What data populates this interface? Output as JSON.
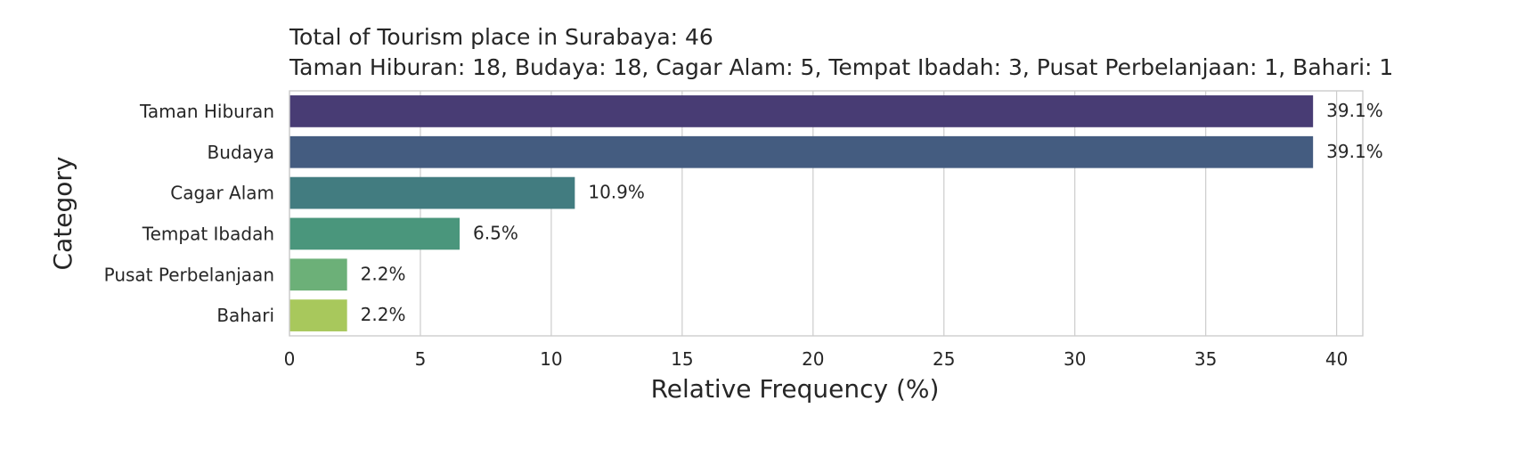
{
  "chart_data": {
    "type": "bar",
    "orientation": "horizontal",
    "title": "Total of Tourism place in Surabaya: 46",
    "subtitle": "Taman Hiburan: 18, Budaya: 18, Cagar Alam: 5, Tempat Ibadah: 3, Pusat Perbelanjaan: 1, Bahari: 1",
    "xlabel": "Relative Frequency (%)",
    "ylabel": "Category",
    "xlim": [
      0,
      41
    ],
    "xticks": [
      0,
      5,
      10,
      15,
      20,
      25,
      30,
      35,
      40
    ],
    "grid": true,
    "categories": [
      "Taman Hiburan",
      "Budaya",
      "Cagar Alam",
      "Tempat Ibadah",
      "Pusat Perbelanjaan",
      "Bahari"
    ],
    "values": [
      39.1,
      39.1,
      10.9,
      6.5,
      2.2,
      2.2
    ],
    "data_labels": [
      "39.1%",
      "39.1%",
      "10.9%",
      "6.5%",
      "2.2%",
      "2.2%"
    ],
    "colors": [
      "#483c74",
      "#445c80",
      "#427c80",
      "#4a967c",
      "#6cb078",
      "#a8c85c"
    ]
  }
}
